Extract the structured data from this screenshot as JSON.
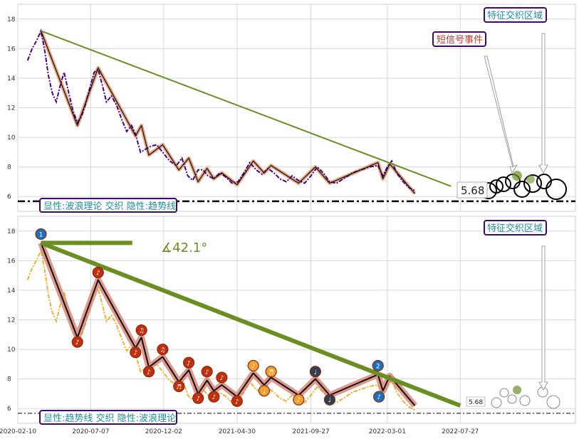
{
  "colors": {
    "trend": "#6b8e23",
    "wave": "#111111",
    "wave_halo": "#e8a47e",
    "price_top": "#4b0082",
    "price_bottom": "#f0b030",
    "accent_box": "#3d0a6e",
    "teal_text": "#1f8fa0",
    "red_text": "#c0392b",
    "marker_red": "#c0300f",
    "marker_orange": "#f0a030",
    "marker_blue": "#1a70c0",
    "marker_dark": "#2f3f4f"
  },
  "labels": {
    "top_legend": "显性:波浪理论 交织 隐性:趋势线",
    "bottom_legend": "显性:趋势线 交织 隐性:波浪理论",
    "feature_zone_top": "特征交织区域",
    "feature_zone_bottom": "特征交织区域",
    "short_signal": "短信号事件",
    "support_top": "5.68",
    "support_bottom": "5.68",
    "angle": "∡42.1°"
  },
  "chart_data": [
    {
      "type": "line",
      "panel": "top",
      "x_ticks": [
        "2020-02-10",
        "2020-07-07",
        "2020-12-02",
        "2021-04-30",
        "2021-09-27",
        "2022-03-01",
        "2022-07-27"
      ],
      "ylim": [
        5.0,
        19.0
      ],
      "y_ticks": [
        6,
        8,
        10,
        12,
        14,
        16,
        18
      ],
      "grid": true,
      "support_level": 5.68,
      "price": [
        [
          "2020-03-01",
          15.2
        ],
        [
          "2020-03-10",
          16.0
        ],
        [
          "2020-03-20",
          16.6
        ],
        [
          "2020-03-28",
          17.2
        ],
        [
          "2020-04-05",
          15.8
        ],
        [
          "2020-04-12",
          14.2
        ],
        [
          "2020-04-20",
          13.0
        ],
        [
          "2020-04-28",
          12.4
        ],
        [
          "2020-05-06",
          13.5
        ],
        [
          "2020-05-14",
          14.4
        ],
        [
          "2020-05-22",
          13.2
        ],
        [
          "2020-06-01",
          11.8
        ],
        [
          "2020-06-10",
          11.0
        ],
        [
          "2020-06-18",
          11.4
        ],
        [
          "2020-06-26",
          12.2
        ],
        [
          "2020-07-04",
          13.2
        ],
        [
          "2020-07-14",
          14.4
        ],
        [
          "2020-07-22",
          14.6
        ],
        [
          "2020-07-30",
          13.6
        ],
        [
          "2020-08-08",
          12.4
        ],
        [
          "2020-08-18",
          12.8
        ],
        [
          "2020-08-28",
          12.2
        ],
        [
          "2020-09-08",
          11.2
        ],
        [
          "2020-09-18",
          10.4
        ],
        [
          "2020-09-28",
          10.8
        ],
        [
          "2020-10-06",
          10.2
        ],
        [
          "2020-10-16",
          9.0
        ],
        [
          "2020-10-26",
          9.2
        ],
        [
          "2020-11-06",
          9.4
        ],
        [
          "2020-11-18",
          9.5
        ],
        [
          "2020-11-30",
          9.0
        ],
        [
          "2020-12-14",
          8.4
        ],
        [
          "2020-12-28",
          8.1
        ],
        [
          "2021-01-08",
          8.6
        ],
        [
          "2021-01-20",
          7.4
        ],
        [
          "2021-01-30",
          7.1
        ],
        [
          "2021-02-10",
          7.8
        ],
        [
          "2021-02-20",
          7.8
        ],
        [
          "2021-03-02",
          7.4
        ],
        [
          "2021-03-14",
          7.2
        ],
        [
          "2021-03-26",
          7.6
        ],
        [
          "2021-04-08",
          7.3
        ],
        [
          "2021-04-20",
          6.9
        ],
        [
          "2021-05-02",
          7.0
        ],
        [
          "2021-05-14",
          7.6
        ],
        [
          "2021-05-26",
          8.3
        ],
        [
          "2021-06-08",
          7.8
        ],
        [
          "2021-06-20",
          7.5
        ],
        [
          "2021-07-02",
          7.9
        ],
        [
          "2021-07-14",
          7.6
        ],
        [
          "2021-07-26",
          7.2
        ],
        [
          "2021-08-08",
          7.0
        ],
        [
          "2021-08-20",
          7.4
        ],
        [
          "2021-09-01",
          7.1
        ],
        [
          "2021-09-14",
          6.9
        ],
        [
          "2021-09-27",
          7.4
        ],
        [
          "2021-10-10",
          8.0
        ],
        [
          "2021-10-22",
          7.6
        ],
        [
          "2021-11-04",
          7.0
        ],
        [
          "2021-11-18",
          6.9
        ],
        [
          "2021-12-02",
          7.2
        ],
        [
          "2021-12-20",
          7.6
        ],
        [
          "2022-01-06",
          7.8
        ],
        [
          "2022-01-24",
          8.0
        ],
        [
          "2022-02-10",
          8.1
        ],
        [
          "2022-02-20",
          7.4
        ],
        [
          "2022-03-01",
          8.0
        ],
        [
          "2022-03-10",
          8.4
        ],
        [
          "2022-03-20",
          7.6
        ],
        [
          "2022-04-02",
          7.0
        ],
        [
          "2022-04-14",
          6.6
        ],
        [
          "2022-04-26",
          6.4
        ]
      ],
      "wave_points": [
        [
          "2020-03-28",
          17.2
        ],
        [
          "2020-06-10",
          10.8
        ],
        [
          "2020-07-22",
          14.7
        ],
        [
          "2020-10-06",
          10.1
        ],
        [
          "2020-10-18",
          10.8
        ],
        [
          "2020-11-02",
          8.8
        ],
        [
          "2020-11-30",
          9.5
        ],
        [
          "2021-01-02",
          7.8
        ],
        [
          "2021-01-22",
          8.6
        ],
        [
          "2021-02-10",
          7.0
        ],
        [
          "2021-02-28",
          7.9
        ],
        [
          "2021-03-14",
          7.2
        ],
        [
          "2021-03-30",
          7.6
        ],
        [
          "2021-04-30",
          6.8
        ],
        [
          "2021-06-02",
          8.4
        ],
        [
          "2021-06-24",
          7.6
        ],
        [
          "2021-07-08",
          8.1
        ],
        [
          "2021-09-02",
          6.9
        ],
        [
          "2021-10-06",
          8.0
        ],
        [
          "2021-11-04",
          6.9
        ],
        [
          "2022-02-10",
          8.3
        ],
        [
          "2022-02-20",
          7.2
        ],
        [
          "2022-03-06",
          8.2
        ],
        [
          "2022-04-26",
          6.2
        ]
      ],
      "trend_line": [
        [
          "2020-03-28",
          17.2
        ],
        [
          "2022-07-08",
          6.7
        ]
      ]
    },
    {
      "type": "line",
      "panel": "bottom",
      "x_ticks": [
        "2020-02-10",
        "2020-07-07",
        "2020-12-02",
        "2021-04-30",
        "2021-09-27",
        "2022-03-01",
        "2022-07-27"
      ],
      "ylim": [
        5.0,
        19.0
      ],
      "y_ticks": [
        6,
        8,
        10,
        12,
        14,
        16,
        18
      ],
      "grid": true,
      "support_level": 5.68,
      "trend_line": [
        [
          "2020-03-28",
          17.2
        ],
        [
          "2022-07-27",
          6.2
        ]
      ],
      "angle_degrees": 42.1,
      "markers": [
        {
          "date": "2020-03-28",
          "value": 17.8,
          "color": "marker_blue",
          "glyph": "1"
        },
        {
          "date": "2020-06-10",
          "value": 10.5,
          "color": "marker_red",
          "glyph": "♪"
        },
        {
          "date": "2020-07-22",
          "value": 15.2,
          "color": "marker_red",
          "glyph": "♪"
        },
        {
          "date": "2020-10-06",
          "value": 9.8,
          "color": "marker_red",
          "glyph": "♪"
        },
        {
          "date": "2020-10-18",
          "value": 11.3,
          "color": "marker_red",
          "glyph": "♫"
        },
        {
          "date": "2020-11-02",
          "value": 8.5,
          "color": "marker_red",
          "glyph": "♪"
        },
        {
          "date": "2020-11-30",
          "value": 10.0,
          "color": "marker_red",
          "glyph": "♫"
        },
        {
          "date": "2021-01-02",
          "value": 7.5,
          "color": "marker_red",
          "glyph": "♬"
        },
        {
          "date": "2021-01-22",
          "value": 9.1,
          "color": "marker_red",
          "glyph": "♪"
        },
        {
          "date": "2021-02-10",
          "value": 6.7,
          "color": "marker_red",
          "glyph": "♪"
        },
        {
          "date": "2021-02-28",
          "value": 8.5,
          "color": "marker_red",
          "glyph": "♪"
        },
        {
          "date": "2021-03-14",
          "value": 6.8,
          "color": "marker_red",
          "glyph": "♪"
        },
        {
          "date": "2021-03-30",
          "value": 8.1,
          "color": "marker_red",
          "glyph": "♪"
        },
        {
          "date": "2021-04-30",
          "value": 6.5,
          "color": "marker_red",
          "glyph": "♪"
        },
        {
          "date": "2021-06-02",
          "value": 8.9,
          "color": "marker_orange",
          "glyph": "♪"
        },
        {
          "date": "2021-06-24",
          "value": 7.2,
          "color": "marker_orange",
          "glyph": "♩"
        },
        {
          "date": "2021-07-08",
          "value": 8.5,
          "color": "marker_orange",
          "glyph": "♬"
        },
        {
          "date": "2021-09-02",
          "value": 6.6,
          "color": "marker_orange",
          "glyph": "♪"
        },
        {
          "date": "2021-10-06",
          "value": 8.5,
          "color": "marker_dark",
          "glyph": "♩"
        },
        {
          "date": "2021-11-04",
          "value": 6.6,
          "color": "marker_dark",
          "glyph": "♩"
        },
        {
          "date": "2022-02-10",
          "value": 8.9,
          "color": "marker_blue",
          "glyph": "2"
        },
        {
          "date": "2022-02-12",
          "value": 6.8,
          "color": "marker_blue",
          "glyph": "♪"
        }
      ]
    }
  ]
}
